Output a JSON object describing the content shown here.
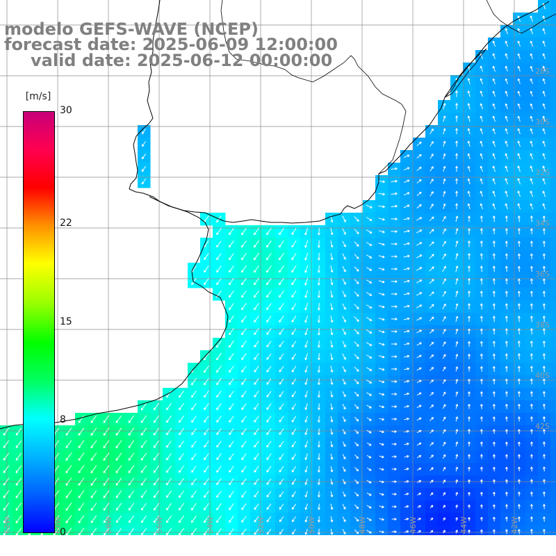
{
  "title": {
    "line1": "modelo GEFS-WAVE (NCEP)",
    "line2": "forecast date: 2025-06-09 12:00:00",
    "line3": "valid date: 2025-06-12 00:00:00"
  },
  "colorbar": {
    "units": "[m/s]",
    "ticks": [
      {
        "value": 30,
        "label": "30"
      },
      {
        "value": 22,
        "label": "22"
      },
      {
        "value": 15,
        "label": "15"
      },
      {
        "value": 8,
        "label": "8"
      },
      {
        "value": 0,
        "label": "0"
      }
    ],
    "colors": [
      "#0000ff",
      "#0060ff",
      "#00b4ff",
      "#00ffff",
      "#00ff60",
      "#00ff00",
      "#a0ff00",
      "#ffff00",
      "#ff9000",
      "#ff0000",
      "#ff0050",
      "#c8007a"
    ]
  },
  "grid": {
    "lon_labels": [
      "62W",
      "60W",
      "58W",
      "56W",
      "54W",
      "52W",
      "50W",
      "48W",
      "46W",
      "44W",
      "42W"
    ],
    "lat_labels": [
      "28S",
      "30S",
      "32S",
      "34S",
      "36S",
      "38S",
      "40S",
      "42S"
    ]
  }
}
